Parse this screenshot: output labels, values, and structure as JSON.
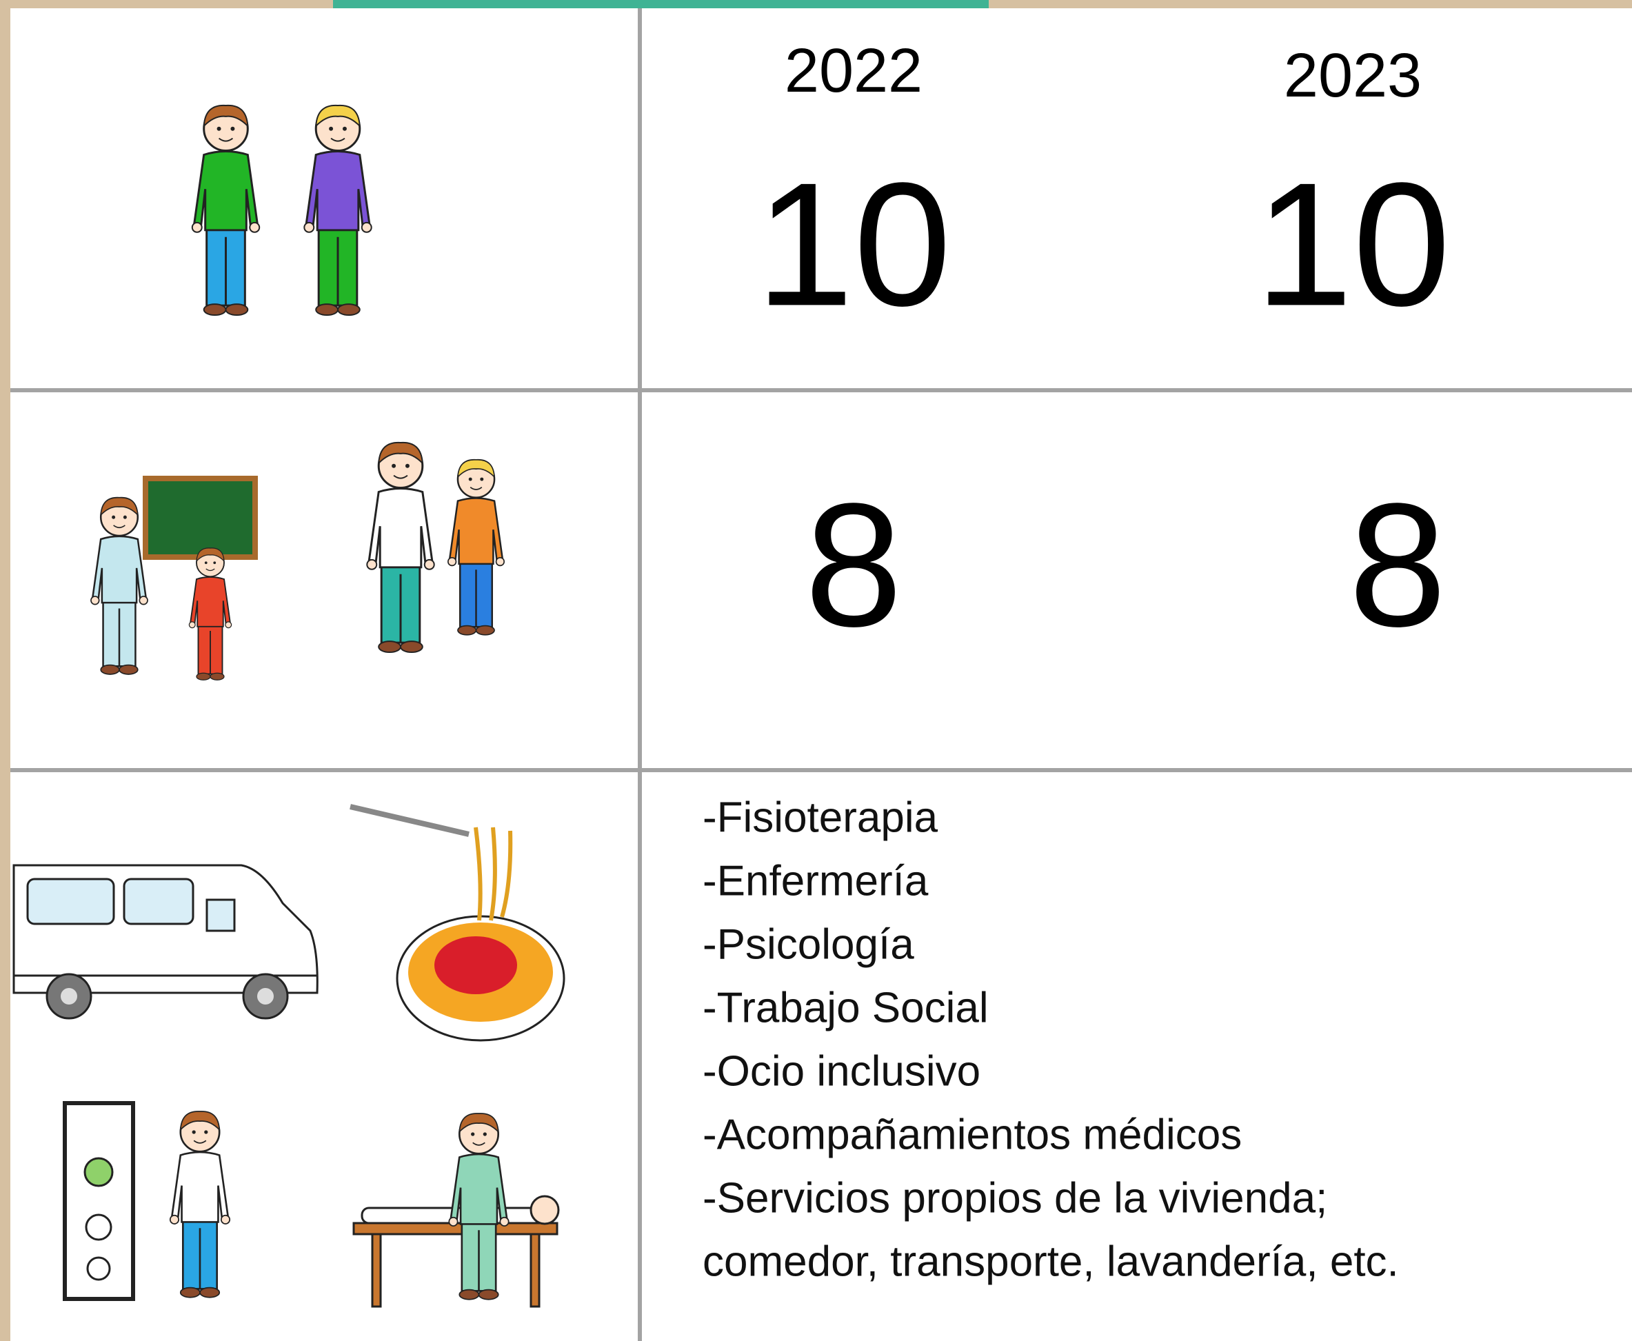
{
  "table": {
    "headers": [
      "2022",
      "2023"
    ],
    "rows": [
      [
        "10",
        "10"
      ],
      [
        "8",
        "8"
      ]
    ],
    "services": [
      "-Fisioterapia",
      "-Enfermería",
      "-Psicología",
      "-Trabajo Social",
      "-Ocio inclusivo",
      "-Acompañamientos médicos",
      "-Servicios propios de la vivienda;",
      "comedor, transporte, lavandería, etc."
    ]
  }
}
